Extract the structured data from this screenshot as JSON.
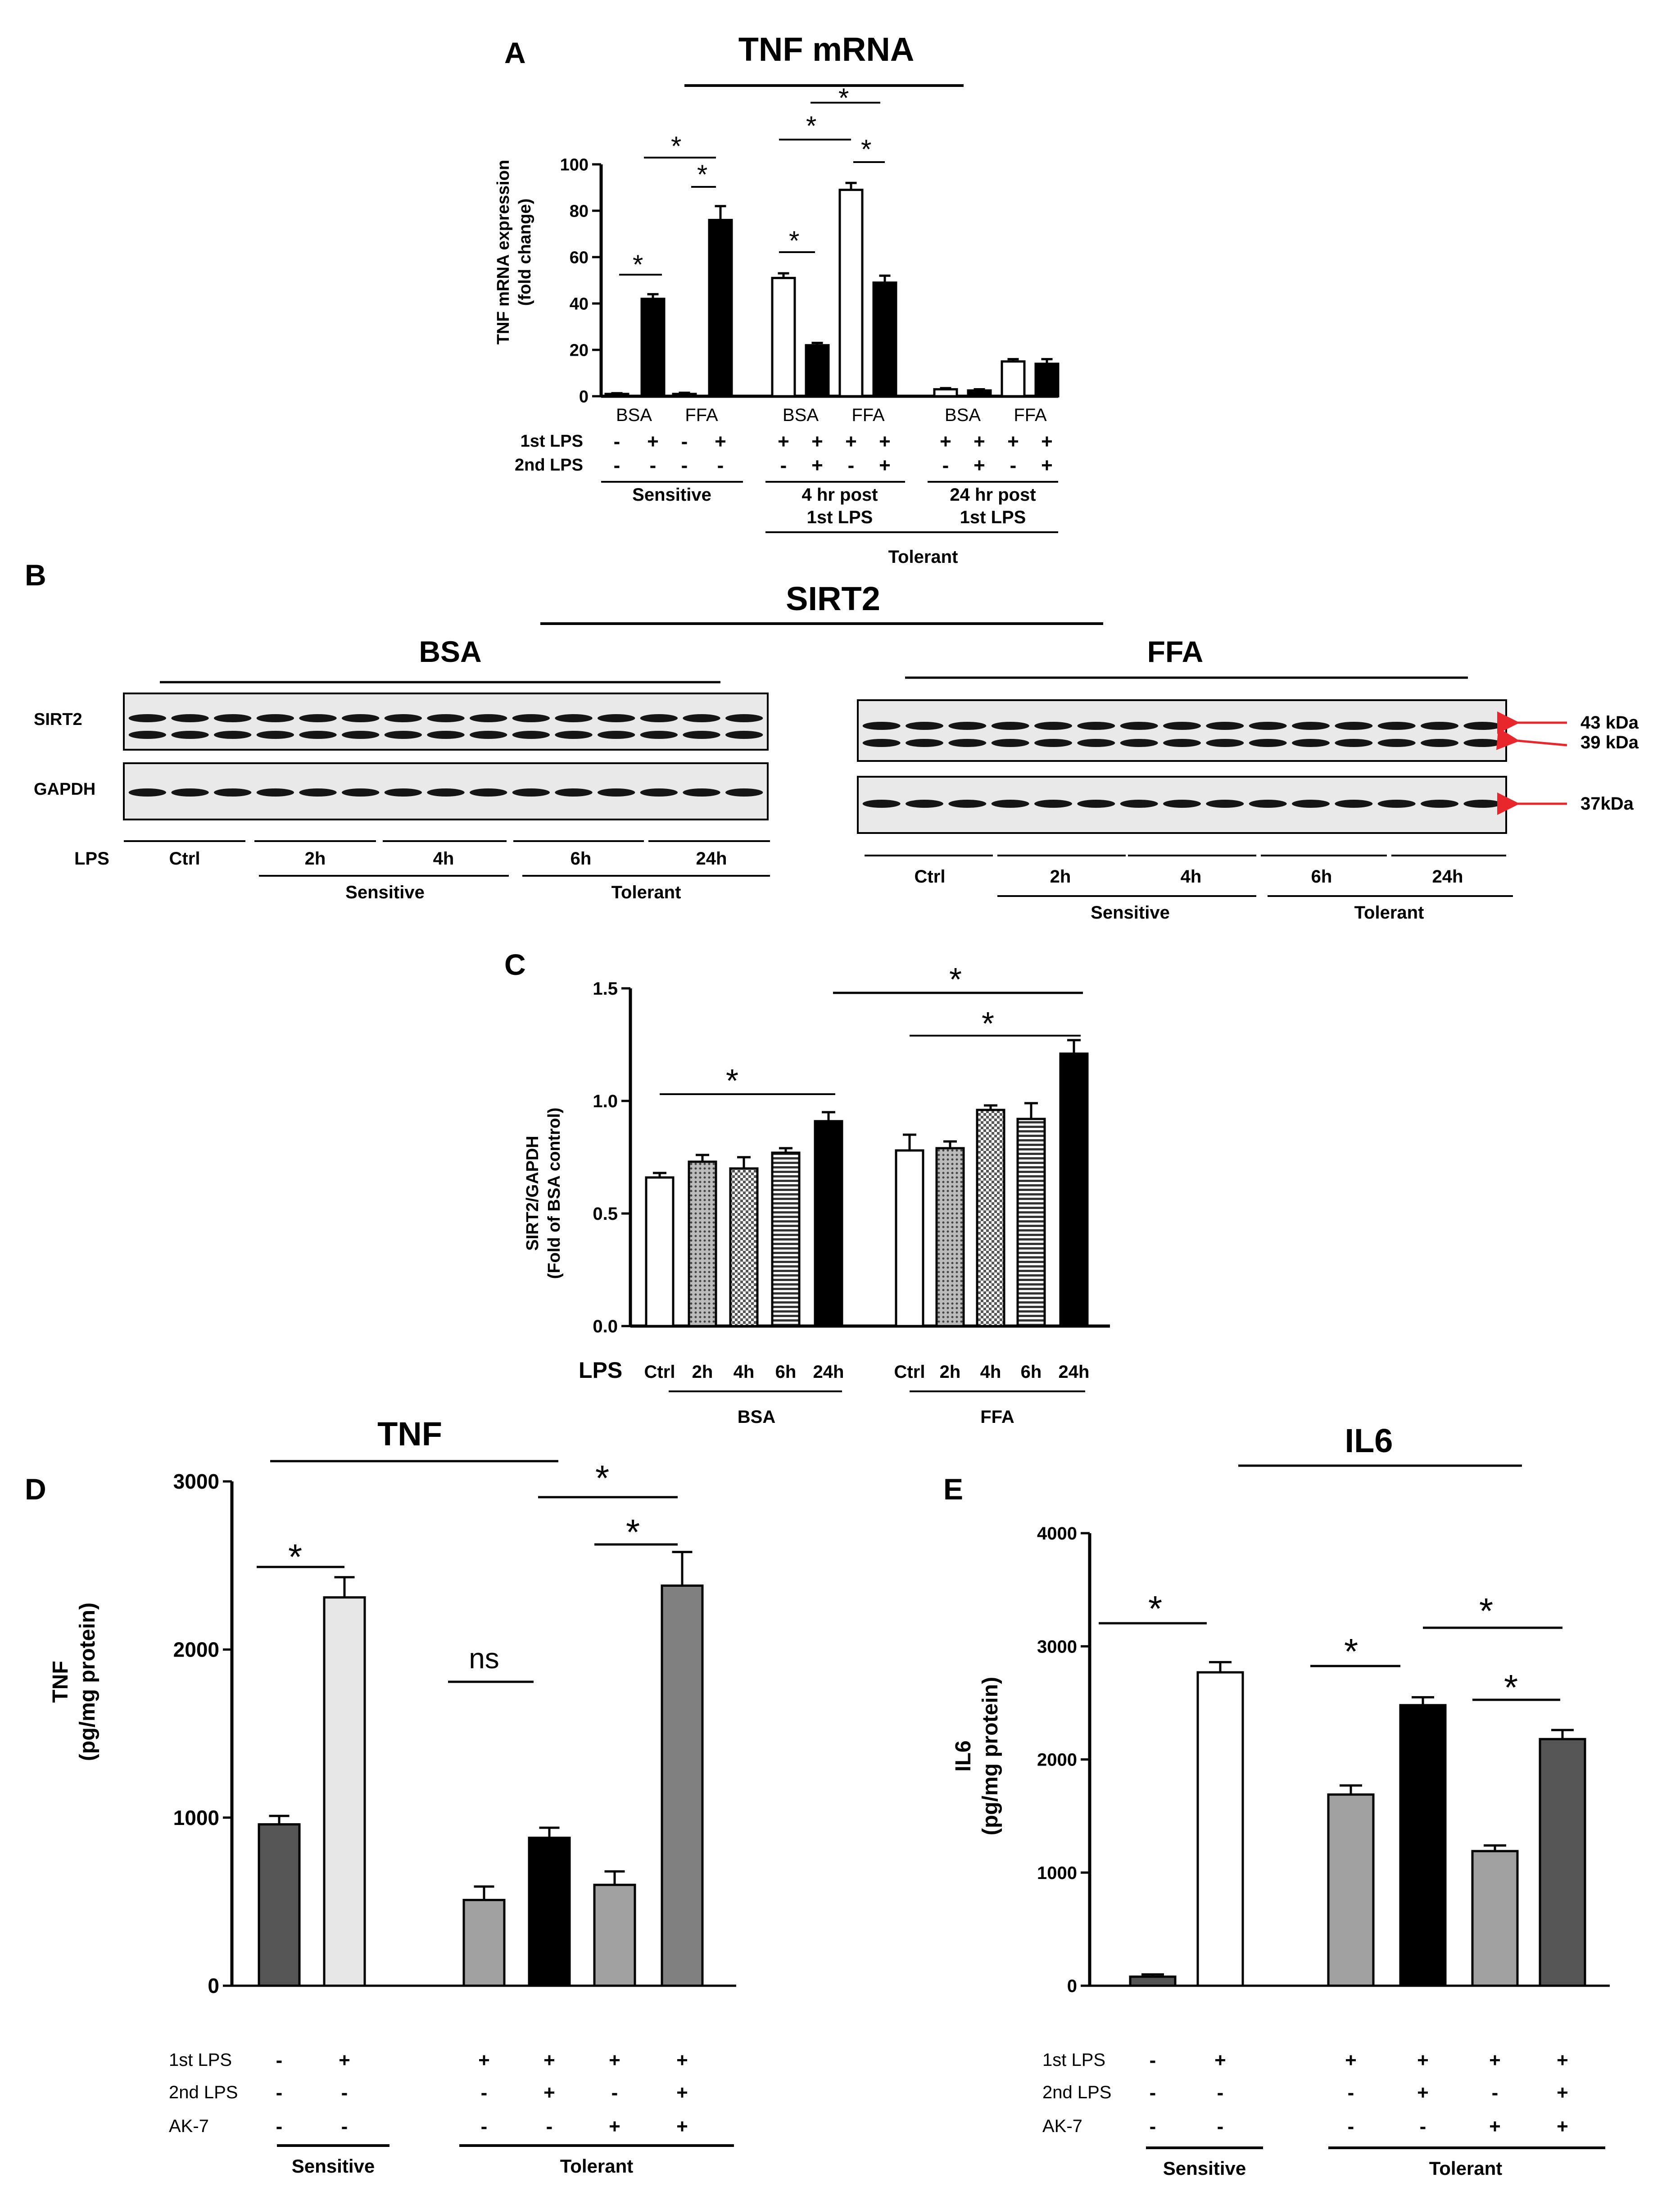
{
  "panels": {
    "A": {
      "letter": "A",
      "title": "TNF mRNA",
      "ylabel_line1": "TNF mRNA expression",
      "ylabel_line2": "(fold change)",
      "cat_labels": [
        "BSA",
        "FFA",
        "BSA",
        "FFA",
        "BSA",
        "FFA"
      ],
      "row_labels": [
        "1st LPS",
        "2nd LPS"
      ],
      "row1": [
        "-",
        "+",
        "-",
        "+",
        "+",
        "+",
        "+",
        "+",
        "+",
        "+",
        "+",
        "+"
      ],
      "row2": [
        "-",
        "-",
        "-",
        "-",
        "-",
        "+",
        "-",
        "+",
        "-",
        "+",
        "-",
        "+"
      ],
      "group_sensitive": "Sensitive",
      "group_4hr_line1": "4 hr post",
      "group_4hr_line2": "1st LPS",
      "group_24hr_line1": "24 hr post",
      "group_24hr_line2": "1st LPS",
      "group_tolerant": "Tolerant",
      "star": "*"
    },
    "B": {
      "letter": "B",
      "title": "SIRT2",
      "bsa_label": "BSA",
      "ffa_label": "FFA",
      "row_sirt2": "SIRT2",
      "row_gapdh": "GAPDH",
      "lps_label": "LPS",
      "time_labels": [
        "Ctrl",
        "2h",
        "4h",
        "6h",
        "24h"
      ],
      "sensitive": "Sensitive",
      "tolerant": "Tolerant",
      "kda43": "43 kDa",
      "kda39": "39 kDa",
      "kda37": "37kDa",
      "arrow_color": "#e8262b"
    },
    "C": {
      "letter": "C",
      "ylabel_line1": "SIRT2/GAPDH",
      "ylabel_line2": "(Fold of BSA control)",
      "lps_label": "LPS",
      "time_labels": [
        "Ctrl",
        "2h",
        "4h",
        "6h",
        "24h",
        "Ctrl",
        "2h",
        "4h",
        "6h",
        "24h"
      ],
      "bsa_label": "BSA",
      "ffa_label": "FFA",
      "star": "*"
    },
    "D": {
      "letter": "D",
      "title": "TNF",
      "ylabel_line1": "TNF",
      "ylabel_line2": "(pg/mg protein)",
      "row_labels": [
        "1st LPS",
        "2nd LPS",
        "AK-7"
      ],
      "row1": [
        "-",
        "+",
        "+",
        "+",
        "+",
        "+"
      ],
      "row2": [
        "-",
        "-",
        "-",
        "+",
        "-",
        "+"
      ],
      "row3": [
        "-",
        "-",
        "-",
        "-",
        "+",
        "+"
      ],
      "sensitive": "Sensitive",
      "tolerant": "Tolerant",
      "ns": "ns",
      "star": "*"
    },
    "E": {
      "letter": "E",
      "title": "IL6",
      "ylabel_line1": "IL6",
      "ylabel_line2": "(pg/mg protein)",
      "row_labels": [
        "1st LPS",
        "2nd LPS",
        "AK-7"
      ],
      "row1": [
        "-",
        "+",
        "+",
        "+",
        "+",
        "+"
      ],
      "row2": [
        "-",
        "-",
        "-",
        "+",
        "-",
        "+"
      ],
      "row3": [
        "-",
        "-",
        "-",
        "-",
        "+",
        "+"
      ],
      "sensitive": "Sensitive",
      "tolerant": "Tolerant",
      "star": "*"
    }
  },
  "chart_data": [
    {
      "panel": "A",
      "type": "bar",
      "title": "TNF mRNA",
      "ylabel": "TNF mRNA expression (fold change)",
      "ylim": [
        0,
        100
      ],
      "yticks": [
        0,
        20,
        40,
        60,
        80,
        100
      ],
      "values": [
        1,
        42,
        1,
        76,
        51,
        22,
        89,
        49,
        3,
        2.5,
        15,
        14
      ],
      "errors": [
        0.3,
        2,
        0.5,
        6,
        2,
        1,
        3,
        3,
        0.5,
        0.5,
        1,
        2
      ],
      "fills": [
        "#000000",
        "#000000",
        "#000000",
        "#000000",
        "#ffffff",
        "#000000",
        "#ffffff",
        "#000000",
        "#ffffff",
        "#000000",
        "#ffffff",
        "#000000"
      ]
    },
    {
      "panel": "C",
      "type": "bar",
      "ylabel": "SIRT2/GAPDH (Fold of BSA control)",
      "ylim": [
        0,
        1.5
      ],
      "yticks": [
        "0.0",
        "0.5",
        "1.0",
        "1.5"
      ],
      "categories": [
        "Ctrl",
        "2h",
        "4h",
        "6h",
        "24h",
        "Ctrl",
        "2h",
        "4h",
        "6h",
        "24h"
      ],
      "values": [
        0.66,
        0.73,
        0.7,
        0.77,
        0.91,
        0.78,
        0.79,
        0.96,
        0.92,
        1.21
      ],
      "errors": [
        0.02,
        0.03,
        0.05,
        0.02,
        0.04,
        0.07,
        0.03,
        0.02,
        0.07,
        0.06
      ]
    },
    {
      "panel": "D",
      "type": "bar",
      "title": "TNF",
      "ylabel": "TNF (pg/mg protein)",
      "ylim": [
        0,
        3000
      ],
      "yticks": [
        0,
        1000,
        2000,
        3000
      ],
      "values": [
        960,
        2310,
        510,
        880,
        600,
        2380
      ],
      "errors": [
        50,
        120,
        80,
        60,
        80,
        200
      ],
      "fills": [
        "#555555",
        "#e6e6e6",
        "#a0a0a0",
        "#000000",
        "#a0a0a0",
        "#808080"
      ]
    },
    {
      "panel": "E",
      "type": "bar",
      "title": "IL6",
      "ylabel": "IL6 (pg/mg protein)",
      "ylim": [
        0,
        4000
      ],
      "yticks": [
        0,
        1000,
        2000,
        3000,
        4000
      ],
      "values": [
        80,
        2770,
        1690,
        2480,
        1190,
        2180
      ],
      "errors": [
        20,
        90,
        80,
        70,
        50,
        80
      ],
      "fills": [
        "#555555",
        "#ffffff",
        "#a0a0a0",
        "#000000",
        "#a0a0a0",
        "#555555"
      ]
    }
  ]
}
